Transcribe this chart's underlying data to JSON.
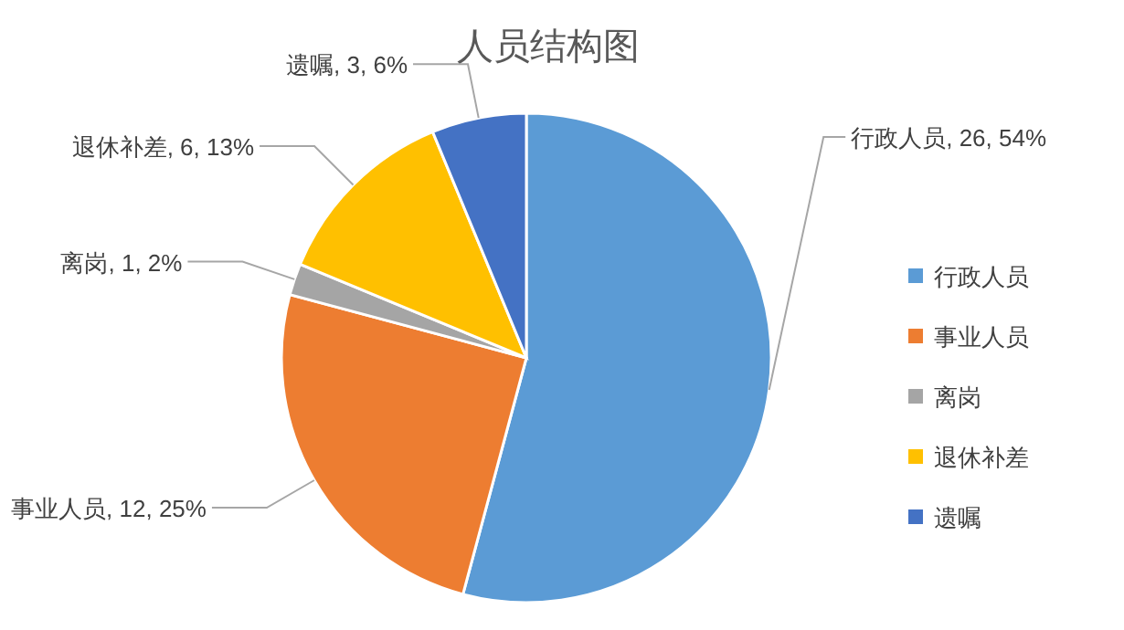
{
  "chart_data": {
    "type": "pie",
    "title": "人员结构图",
    "categories": [
      "行政人员",
      "事业人员",
      "离岗",
      "退休补差",
      "遗嘱"
    ],
    "values": [
      26,
      12,
      1,
      6,
      3
    ],
    "colors": [
      "#5b9bd5",
      "#ed7d31",
      "#a5a5a5",
      "#ffc000",
      "#4472c4"
    ],
    "value_labels": [
      "行政人员, 26, 54%",
      "事业人员, 12, 25%",
      "离岗, 1, 2%",
      "退休补差, 6, 13%",
      "遗嘱, 3, 6%"
    ],
    "legend": "right"
  }
}
